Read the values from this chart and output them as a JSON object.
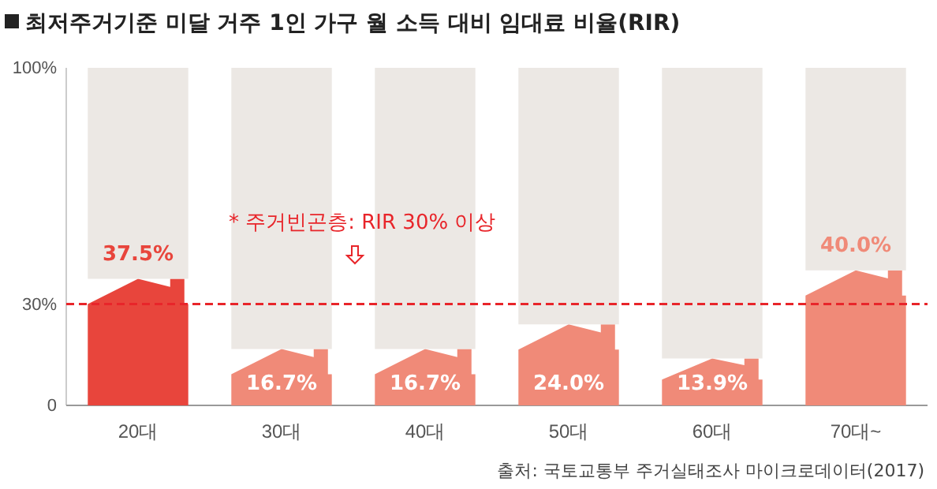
{
  "chart_data": {
    "type": "bar",
    "title": "최저주거기준 미달 거주 1인 가구 월 소득 대비 임대료 비율(RIR)",
    "categories": [
      "20대",
      "30대",
      "40대",
      "50대",
      "60대",
      "70대~"
    ],
    "series": [
      {
        "colors": [
          "#e8453c",
          "#f08a78",
          "#f08a78",
          "#f08a78",
          "#f08a78",
          "#f08a78"
        ],
        "values": [
          37.5,
          16.7,
          16.7,
          24.0,
          13.9,
          40.0
        ],
        "value_labels": [
          "37.5%",
          "16.7%",
          "16.7%",
          "24.0%",
          "13.9%",
          "40.0%"
        ]
      },
      {
        "color": "#ece8e4",
        "values": [
          62.5,
          83.3,
          83.3,
          76.0,
          86.1,
          60.0
        ]
      }
    ],
    "stacked": true,
    "ylim": [
      0,
      100
    ],
    "yticks": [
      0,
      {
        "value": 30,
        "label": "30%"
      },
      {
        "value": 100,
        "label": "100%"
      }
    ],
    "ref_lines": [
      {
        "axis": "y",
        "value": 30,
        "color": "#e8252a",
        "line_style": "dashed"
      }
    ],
    "annotations": [
      "* 주거빈곤층: RIR 30% 이상",
      "출처: 국토교통부 주거실태조사 마이크로데이터(2017)"
    ],
    "grid": false
  }
}
